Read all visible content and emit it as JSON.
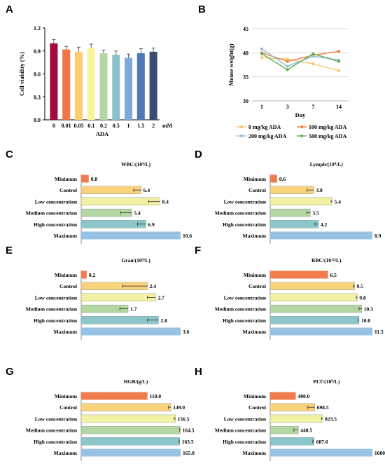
{
  "colors": {
    "min": "#f07b4c",
    "control": "#f9d27c",
    "low": "#f2f2a5",
    "medium": "#b3d6a2",
    "high": "#8bc6cb",
    "max": "#98c2e4",
    "ada": [
      "#a3093e",
      "#f07448",
      "#fbcd6f",
      "#f7f59c",
      "#b2d7a6",
      "#8cc1c9",
      "#7fa8d6",
      "#4f77b4",
      "#3c4c72"
    ],
    "weight": [
      "#f8c56e",
      "#ef7d3a",
      "#8fbcdf",
      "#62b04a"
    ],
    "grid": "#d0d0d0"
  },
  "chart_data": [
    {
      "id": "A",
      "type": "bar",
      "panel": "A",
      "categories": [
        "0",
        "0.01",
        "0.05",
        "0.1",
        "0.2",
        "0.5",
        "1",
        "1.5",
        "2"
      ],
      "values": [
        1.0,
        0.92,
        0.89,
        0.94,
        0.87,
        0.85,
        0.81,
        0.87,
        0.89
      ],
      "errors": [
        0.05,
        0.04,
        0.06,
        0.05,
        0.04,
        0.05,
        0.05,
        0.06,
        0.05
      ],
      "ylabel": "Cell viability (%)",
      "xlabel": "ADA",
      "unit": "mM",
      "ylim": [
        0,
        1.2
      ],
      "yticks": [
        "0.0",
        "0.3",
        "0.6",
        "0.9",
        "1.2"
      ]
    },
    {
      "id": "B",
      "type": "line",
      "panel": "B",
      "x": [
        "1",
        "3",
        "7",
        "14"
      ],
      "series": [
        {
          "name": "0 mg/kg ADA",
          "values": [
            39,
            38.7,
            37.7,
            36.3
          ]
        },
        {
          "name": "100 mg/kg ADA",
          "values": [
            40,
            38.2,
            39.5,
            40.3
          ]
        },
        {
          "name": "200 mg/kg ADA",
          "values": [
            40.8,
            37.2,
            39.3,
            38.5
          ]
        },
        {
          "name": "500 mg/kg ADA",
          "values": [
            39.8,
            36.5,
            39.8,
            38.2
          ]
        }
      ],
      "ylabel": "Mouse weight(g)",
      "xlabel": "Day",
      "ylim": [
        30,
        45
      ],
      "yticks": [
        "30",
        "35",
        "40",
        "45"
      ],
      "grid": true,
      "legend": "bottom"
    },
    {
      "id": "C",
      "type": "bar",
      "orientation": "horizontal",
      "panel": "C",
      "title_main": "WBC/(10",
      "title_sup": "9",
      "title_end": "/L)",
      "categories": [
        "Minimum",
        "Control",
        "Low concentration",
        "Medium concentration",
        "High concentration",
        "Maximum"
      ],
      "values": [
        0.8,
        6.4,
        8.4,
        5.4,
        6.9,
        10.6
      ],
      "labels": [
        "0.8",
        "6.4",
        "8.4",
        "5.4",
        "6.9",
        "10.6"
      ],
      "errors": [
        0,
        0.8,
        1.2,
        1.2,
        0.9,
        0
      ],
      "xmax": 10.6
    },
    {
      "id": "D",
      "type": "bar",
      "orientation": "horizontal",
      "panel": "D",
      "title_main": "Lymph/(10",
      "title_sup": "9",
      "title_end": "/L)",
      "categories": [
        "Minimum",
        "Control",
        "Low concentration",
        "Medium concentration",
        "High concentration",
        "Maximum"
      ],
      "values": [
        0.6,
        3.8,
        5.4,
        3.5,
        4.2,
        8.9
      ],
      "labels": [
        "0.6",
        "3.8",
        "5.4",
        "3.5",
        "4.2",
        "8.9"
      ],
      "errors": [
        0,
        0.6,
        0.1,
        0.3,
        0.3,
        0
      ],
      "xmax": 8.9
    },
    {
      "id": "E",
      "type": "bar",
      "orientation": "horizontal",
      "panel": "E",
      "title_main": "Gran/(10",
      "title_sup": "9",
      "title_end": "/L)",
      "categories": [
        "Minimum",
        "Control",
        "Low concentration",
        "Medium concentration",
        "High concentration",
        "Maximum"
      ],
      "values": [
        0.2,
        2.4,
        2.7,
        1.7,
        2.8,
        3.6
      ],
      "labels": [
        "0.2",
        "2.4",
        "2.7",
        "1.7",
        "2.8",
        "3.6"
      ],
      "errors": [
        0,
        0.9,
        0.3,
        0.3,
        0.4,
        0
      ],
      "xmax": 3.6
    },
    {
      "id": "F",
      "type": "bar",
      "orientation": "horizontal",
      "panel": "F",
      "title_main": "RBC/(10",
      "title_sup": "12",
      "title_end": "/L)",
      "categories": [
        "Minimum",
        "Control",
        "Low concentration",
        "Medium concentration",
        "High concentration",
        "Maximum"
      ],
      "values": [
        6.5,
        9.5,
        9.8,
        10.3,
        10.0,
        11.5
      ],
      "labels": [
        "6.5",
        "9.5",
        "9.8",
        "10.3",
        "10.0",
        "11.5"
      ],
      "errors": [
        0,
        0.15,
        0.1,
        0.3,
        0.1,
        0
      ],
      "xmax": 11.5
    },
    {
      "id": "G",
      "type": "bar",
      "orientation": "horizontal",
      "panel": "G",
      "title_main": "HGB/(g/L)",
      "title_sup": "",
      "title_end": "",
      "categories": [
        "Minimum",
        "Control",
        "Low concentration",
        "Medium concentration",
        "High concentration",
        "Maximum"
      ],
      "values": [
        110.0,
        149.0,
        156.5,
        164.5,
        163.5,
        165.0
      ],
      "labels": [
        "110.0",
        "149.0",
        "156.5",
        "164.5",
        "163.5",
        "165.0"
      ],
      "errors": [
        0,
        4,
        2,
        1,
        1,
        0
      ],
      "xmax": 165.0
    },
    {
      "id": "H",
      "type": "bar",
      "orientation": "horizontal",
      "panel": "H",
      "title_main": "PLT/(10",
      "title_sup": "9",
      "title_end": "/L)",
      "categories": [
        "Minimum",
        "Control",
        "Low concentration",
        "Medium concentration",
        "High concentration",
        "Maximum"
      ],
      "values": [
        400.0,
        698.5,
        823.5,
        440.5,
        687.0,
        1600.0
      ],
      "labels": [
        "400.0",
        "698.5",
        "823.5",
        "440.5",
        "687.0",
        "1600.0"
      ],
      "errors": [
        0,
        110,
        20,
        70,
        20,
        0
      ],
      "xmax": 1600.0
    }
  ]
}
